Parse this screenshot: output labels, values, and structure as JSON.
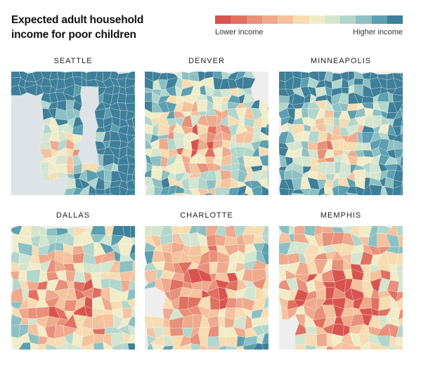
{
  "title": "Expected adult household income for poor children",
  "legend": {
    "low_label": "Lower income",
    "high_label": "Higher income",
    "colors": [
      "#d9534f",
      "#e07060",
      "#e8907a",
      "#efa98c",
      "#f4c29e",
      "#f7dcb2",
      "#f1ecc8",
      "#d3e5cf",
      "#b1d6cc",
      "#8cc0c3",
      "#5b9fb0",
      "#3e7f99"
    ]
  },
  "maps": [
    {
      "name": "SEATTLE",
      "water_color": "#dde3e6",
      "land_bias": 0.72
    },
    {
      "name": "DENVER",
      "water_color": "#eeeeee",
      "land_bias": 0.38
    },
    {
      "name": "MINNEAPOLIS",
      "water_color": "#eeeeee",
      "land_bias": 0.55
    },
    {
      "name": "DALLAS",
      "water_color": "#eeeeee",
      "land_bias": 0.22
    },
    {
      "name": "CHARLOTTE",
      "water_color": "#eeeeee",
      "land_bias": 0.18
    },
    {
      "name": "MEMPHIS",
      "water_color": "#eeeeee",
      "land_bias": 0.08
    }
  ]
}
